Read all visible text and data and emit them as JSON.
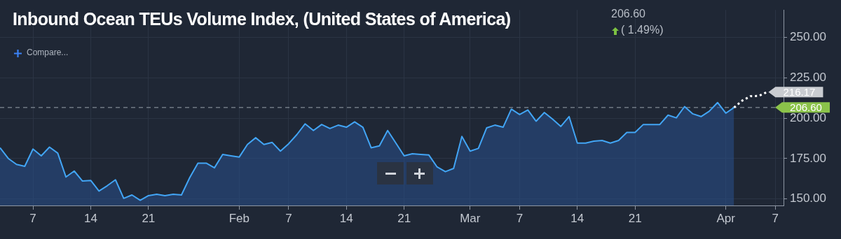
{
  "chart_data": {
    "type": "area",
    "title": "Inbound Ocean TEUs Volume Index, (United States of America)",
    "annotations": [
      "206.60",
      "( 1.49%)",
      "Compare..."
    ],
    "series": [
      {
        "type": "area",
        "color": "#42a5f5",
        "x": [
          "--01-03",
          "--01-04",
          "--01-05",
          "--01-06",
          "--01-07",
          "--01-08",
          "--01-09",
          "--01-10",
          "--01-11",
          "--01-12",
          "--01-13",
          "--01-14",
          "--01-15",
          "--01-16",
          "--01-17",
          "--01-18",
          "--01-19",
          "--01-20",
          "--01-21",
          "--01-22",
          "--01-23",
          "--01-24",
          "--01-25",
          "--01-26",
          "--01-27",
          "--01-28",
          "--01-29",
          "--01-30",
          "--01-31",
          "--02-01",
          "--02-02",
          "--02-03",
          "--02-04",
          "--02-05",
          "--02-06",
          "--02-07",
          "--02-08",
          "--02-09",
          "--02-10",
          "--02-11",
          "--02-12",
          "--02-13",
          "--02-14",
          "--02-15",
          "--02-16",
          "--02-17",
          "--02-18",
          "--02-19",
          "--02-20",
          "--02-21",
          "--02-22",
          "--02-23",
          "--02-24",
          "--02-25",
          "--02-26",
          "--02-27",
          "--02-28",
          "--03-01",
          "--03-02",
          "--03-03",
          "--03-04",
          "--03-05",
          "--03-06",
          "--03-07",
          "--03-08",
          "--03-09",
          "--03-10",
          "--03-11",
          "--03-12",
          "--03-13",
          "--03-14",
          "--03-15",
          "--03-16",
          "--03-17",
          "--03-18",
          "--03-19",
          "--03-20",
          "--03-21",
          "--03-22",
          "--03-23",
          "--03-24",
          "--03-25",
          "--03-26",
          "--03-27",
          "--03-28",
          "--03-29",
          "--03-30",
          "--03-31",
          "--04-01",
          "--04-02"
        ],
        "values": [
          181.7,
          175.1,
          171.4,
          170.2,
          180.9,
          176.7,
          182.1,
          178.4,
          163.6,
          167.3,
          161.1,
          161.5,
          154.9,
          158.2,
          161.9,
          150.4,
          152.5,
          149.2,
          152.1,
          152.9,
          152.1,
          152.9,
          152.5,
          163.2,
          172.2,
          172.2,
          169.3,
          177.6,
          176.7,
          175.9,
          183.7,
          187.9,
          183.7,
          185.0,
          179.6,
          184.2,
          189.9,
          196.5,
          192.4,
          196.1,
          193.6,
          195.7,
          194.4,
          197.7,
          194.4,
          181.7,
          182.9,
          192.4,
          184.6,
          176.7,
          178.0,
          177.6,
          177.2,
          169.8,
          166.9,
          168.9,
          188.7,
          179.6,
          181.3,
          194.0,
          195.7,
          194.4,
          205.6,
          202.3,
          205.1,
          198.1,
          203.5,
          199.4,
          194.9,
          201.0,
          184.6,
          184.6,
          185.8,
          186.2,
          184.6,
          186.2,
          191.2,
          191.2,
          196.1,
          196.1,
          196.1,
          201.9,
          200.2,
          207.2,
          202.7,
          201.0,
          204.3,
          209.7,
          203.1,
          206.6
        ]
      },
      {
        "type": "line",
        "color": "#ffffff",
        "line_style": "dotted",
        "x": [
          "--04-02",
          "--04-03",
          "--04-04",
          "--04-05",
          "--04-06"
        ],
        "values": [
          206.6,
          210.9,
          213.6,
          213.8,
          216.17
        ],
        "value_labels": [
          null,
          null,
          null,
          null,
          "216.17"
        ]
      }
    ],
    "xlim": [
      "--01-03",
      "--04-08"
    ],
    "xticks": [
      {
        "value": "--01-07",
        "label": "7"
      },
      {
        "value": "--01-14",
        "label": "14"
      },
      {
        "value": "--01-21",
        "label": "21"
      },
      {
        "value": "--02-01",
        "label": "Feb"
      },
      {
        "value": "--02-07",
        "label": "7"
      },
      {
        "value": "--02-14",
        "label": "14"
      },
      {
        "value": "--02-21",
        "label": "21"
      },
      {
        "value": "--03-01",
        "label": "Mar"
      },
      {
        "value": "--03-07",
        "label": "7"
      },
      {
        "value": "--03-14",
        "label": "14"
      },
      {
        "value": "--03-21",
        "label": "21"
      },
      {
        "value": "--04-01",
        "label": "Apr"
      },
      {
        "value": "--04-07",
        "label": "7"
      }
    ],
    "ylim": [
      146,
      267
    ],
    "yticks": [
      {
        "value": 150,
        "label": "150.00"
      },
      {
        "value": 175,
        "label": "175.00"
      },
      {
        "value": 200,
        "label": "200.00"
      },
      {
        "value": 225,
        "label": "225.00"
      },
      {
        "value": 250,
        "label": "250.00"
      }
    ],
    "ref_lines": [
      {
        "axis": "y",
        "value": 206.6,
        "label": "206.60",
        "color": "#9aa3ad",
        "line_style": "dashed"
      }
    ],
    "grid": true,
    "legend": false,
    "marker": "none"
  }
}
